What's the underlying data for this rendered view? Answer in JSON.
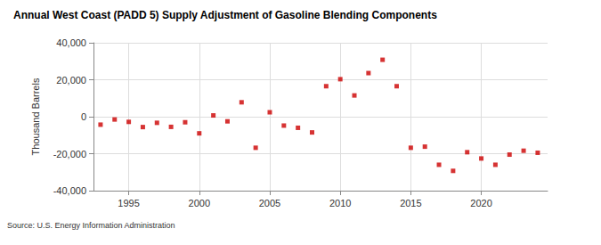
{
  "chart_data": {
    "type": "scatter",
    "title": "Annual West Coast (PADD 5) Supply Adjustment of Gasoline Blending Components",
    "y_label": "Thousand Barrels",
    "source": "Source: U.S. Energy Information Administration",
    "x": [
      1993,
      1994,
      1995,
      1996,
      1997,
      1998,
      1999,
      2000,
      2001,
      2002,
      2003,
      2004,
      2005,
      2006,
      2007,
      2008,
      2009,
      2010,
      2011,
      2012,
      2013,
      2014,
      2015,
      2016,
      2017,
      2018,
      2019,
      2020,
      2021,
      2022,
      2023,
      2024
    ],
    "values": [
      -4300,
      -1500,
      -2800,
      -5600,
      -3300,
      -5500,
      -3000,
      -9000,
      700,
      -2500,
      7800,
      -16800,
      2400,
      -4800,
      -6000,
      -8500,
      16500,
      20300,
      11500,
      23600,
      30800,
      16500,
      -16800,
      -16200,
      -26000,
      -29300,
      -19200,
      -22600,
      -26000,
      -20500,
      -18400,
      -19500
    ],
    "color": "#cc0000",
    "marker": "square",
    "xlim": [
      1992.5,
      2024.7
    ],
    "xticks": [
      1995,
      2000,
      2005,
      2010,
      2015,
      2020
    ],
    "ylim": [
      -40000,
      40000
    ],
    "yticks": [
      {
        "value": -40000,
        "label": "-40,000"
      },
      {
        "value": -20000,
        "label": "-20,000"
      },
      0,
      {
        "value": 20000,
        "label": "20,000"
      },
      {
        "value": 40000,
        "label": "40,000"
      }
    ],
    "grid": true
  }
}
